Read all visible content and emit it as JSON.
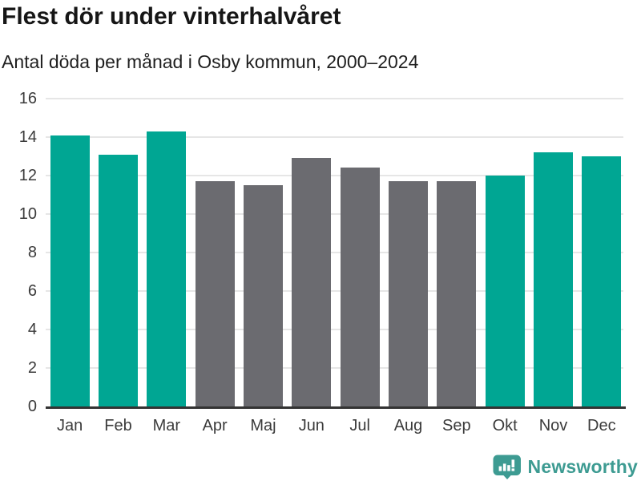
{
  "header": {
    "title": "Flest dör under vinterhalvåret",
    "subtitle": "Antal döda per månad i Osby kommun, 2000–2024"
  },
  "chart_data": {
    "type": "bar",
    "title": "Flest dör under vinterhalvåret",
    "subtitle": "Antal döda per månad i Osby kommun, 2000–2024",
    "categories": [
      "Jan",
      "Feb",
      "Mar",
      "Apr",
      "Maj",
      "Jun",
      "Jul",
      "Aug",
      "Sep",
      "Okt",
      "Nov",
      "Dec"
    ],
    "values": [
      14.1,
      13.1,
      14.3,
      11.7,
      11.5,
      12.9,
      12.4,
      11.7,
      11.7,
      12.0,
      13.2,
      13.0
    ],
    "highlighted": [
      true,
      true,
      true,
      false,
      false,
      false,
      false,
      false,
      false,
      true,
      true,
      true
    ],
    "xlabel": "",
    "ylabel": "",
    "ylim": [
      0,
      16
    ],
    "yticks": [
      0,
      2,
      4,
      6,
      8,
      10,
      12,
      14,
      16
    ],
    "grid": true,
    "legend": "none",
    "bar_colors": {
      "highlight": "#00a693",
      "default": "#6b6b70"
    },
    "gridline_color": "#e6e6e6",
    "axis_color": "#333333"
  },
  "footer": {
    "brand": "Newsworthy",
    "brand_color": "#3d9b92",
    "logo_icon": "newsworthy-speech-bubble-bar-chart-icon"
  }
}
